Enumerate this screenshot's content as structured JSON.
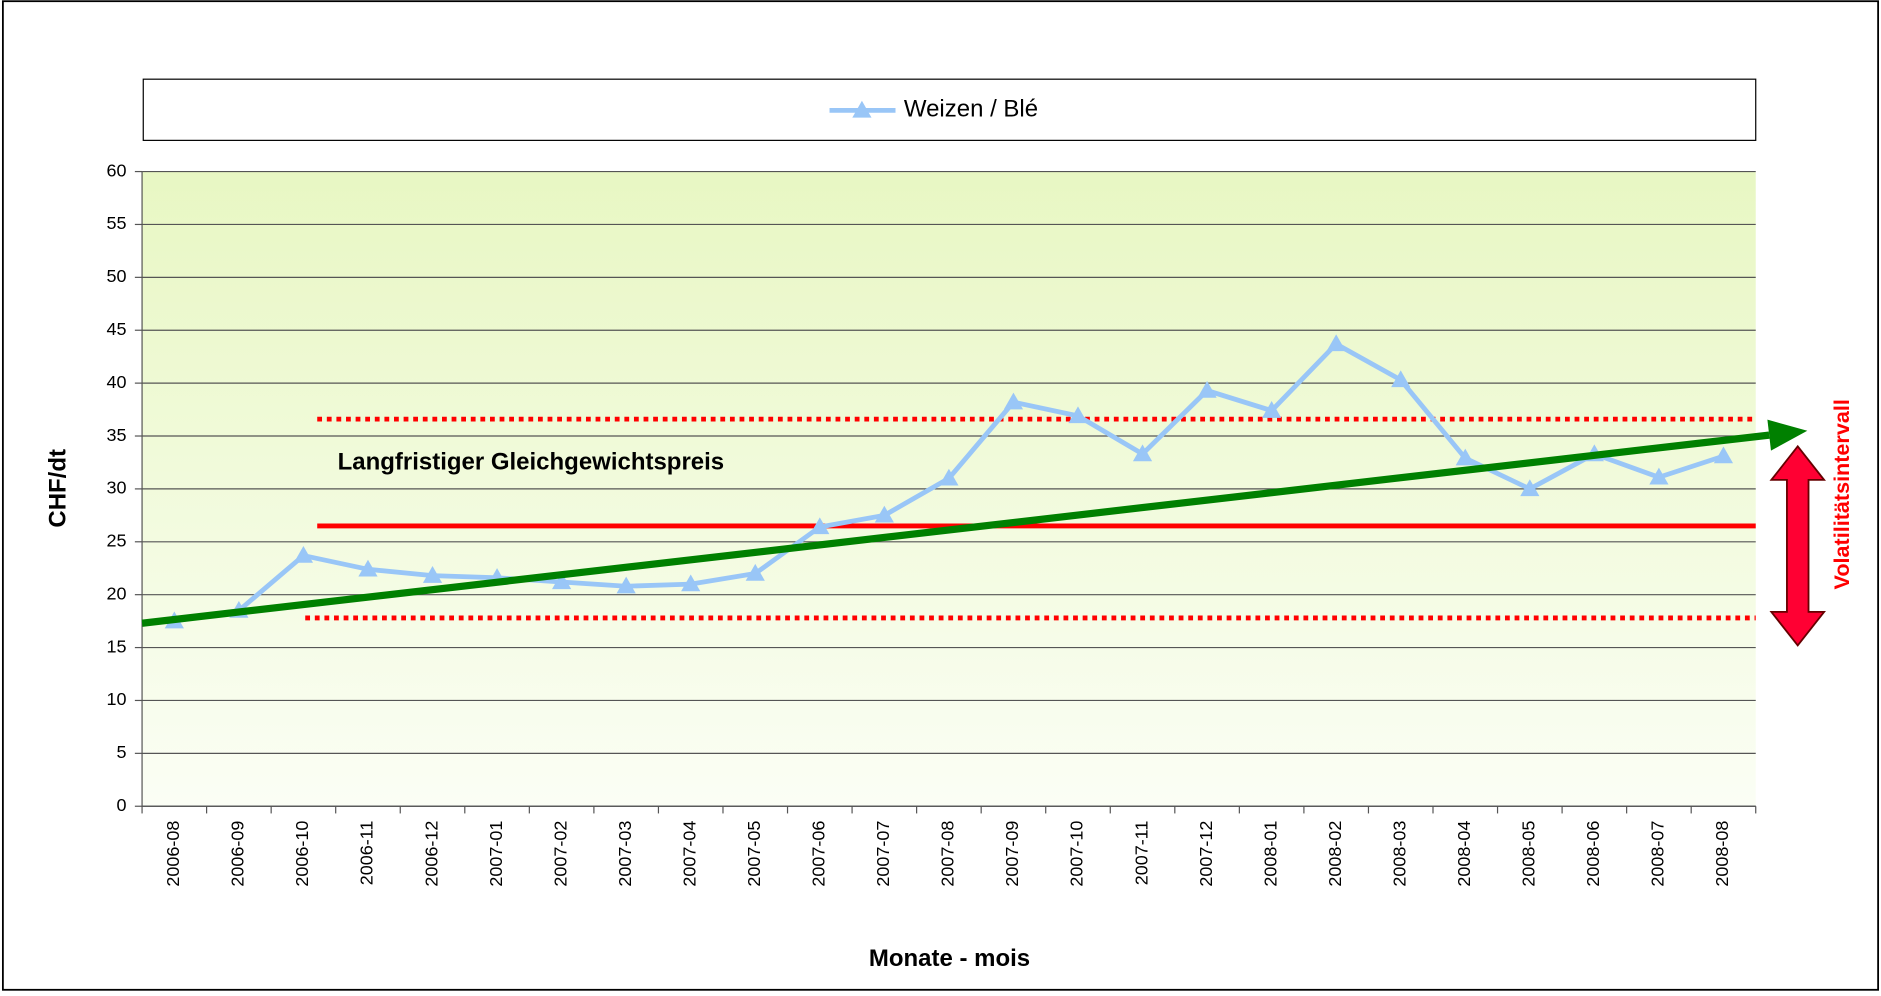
{
  "chart_data": {
    "type": "line",
    "xlabel": "Monate - mois",
    "ylabel": "CHF/dt",
    "categories": [
      "2006-08",
      "2006-09",
      "2006-10",
      "2006-11",
      "2006-12",
      "2007-01",
      "2007-02",
      "2007-03",
      "2007-04",
      "2007-05",
      "2007-06",
      "2007-07",
      "2007-08",
      "2007-09",
      "2007-10",
      "2007-11",
      "2007-12",
      "2008-01",
      "2008-02",
      "2008-03",
      "2008-04",
      "2008-05",
      "2008-06",
      "2008-07",
      "2008-08"
    ],
    "series": [
      {
        "name": "Weizen / Blé",
        "color": "#99c6f7",
        "values": [
          17.5,
          18.5,
          23.7,
          22.4,
          21.8,
          21.6,
          21.2,
          20.8,
          21.0,
          22.0,
          26.4,
          27.5,
          31.0,
          38.2,
          36.9,
          33.3,
          39.3,
          37.4,
          43.7,
          40.3,
          32.9,
          30.0,
          33.3,
          31.1,
          33.1
        ]
      }
    ],
    "ylim": [
      0,
      60
    ],
    "yticks": [
      0,
      5,
      10,
      15,
      20,
      25,
      30,
      35,
      40,
      45,
      50,
      55,
      60
    ],
    "grid": true,
    "equilibrium": {
      "label": "Langfristiger Gleichgewichtspreis",
      "value": 26.5,
      "color": "#ff0000"
    },
    "volatility": {
      "label": "Volatilitätsintervall",
      "values": [
        17.8,
        36.6
      ],
      "color": "#ff0000"
    },
    "trend": {
      "values": [
        17.3,
        35.5
      ],
      "color": "#008000"
    }
  }
}
